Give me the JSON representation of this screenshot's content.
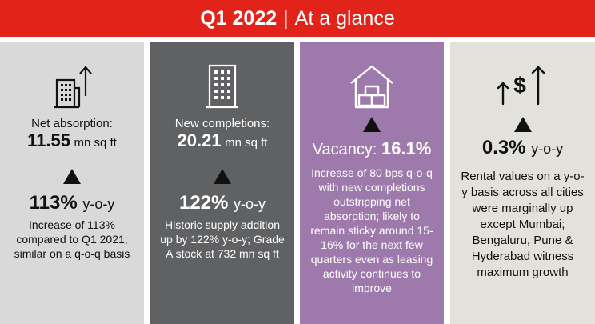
{
  "header": {
    "quarter": "Q1 2022",
    "separator": "|",
    "title": "At a glance"
  },
  "panels": [
    {
      "icon": "building-arrow-up-icon",
      "label": "Net absorption:",
      "value": "11.55",
      "unit": "mn sq ft",
      "trend": "up",
      "pct": "113%",
      "pct_suffix": "y-o-y",
      "desc": "Increase of 113% compared to Q1 2021; similar on a q-o-q basis"
    },
    {
      "icon": "building-icon",
      "label": "New completions:",
      "value": "20.21",
      "unit": "mn sq ft",
      "trend": "up",
      "pct": "122%",
      "pct_suffix": "y-o-y",
      "desc": "Historic supply addition up by 122% y-o-y; Grade A stock at 732 mn sq ft"
    },
    {
      "icon": "house-boxes-icon",
      "trend": "up",
      "label": "Vacancy:",
      "value": "16.1%",
      "desc": "Increase of 80 bps q-o-q with new completions outstripping net absorption; likely to remain sticky around 15-16% for the next few quarters even as leasing activity continues to improve"
    },
    {
      "icon": "dollar-arrows-up-icon",
      "trend": "up",
      "pct": "0.3%",
      "pct_suffix": "y-o-y",
      "desc": "Rental values on a y-o-y basis across all cities were marginally up except Mumbai; Bengaluru, Pune & Hyderabad witness maximum growth"
    }
  ],
  "colors": {
    "header_red": "#e2231a",
    "panel1": "#d9d9d9",
    "panel2": "#606163",
    "panel3": "#9e79ab",
    "panel4": "#e3e1dc"
  }
}
